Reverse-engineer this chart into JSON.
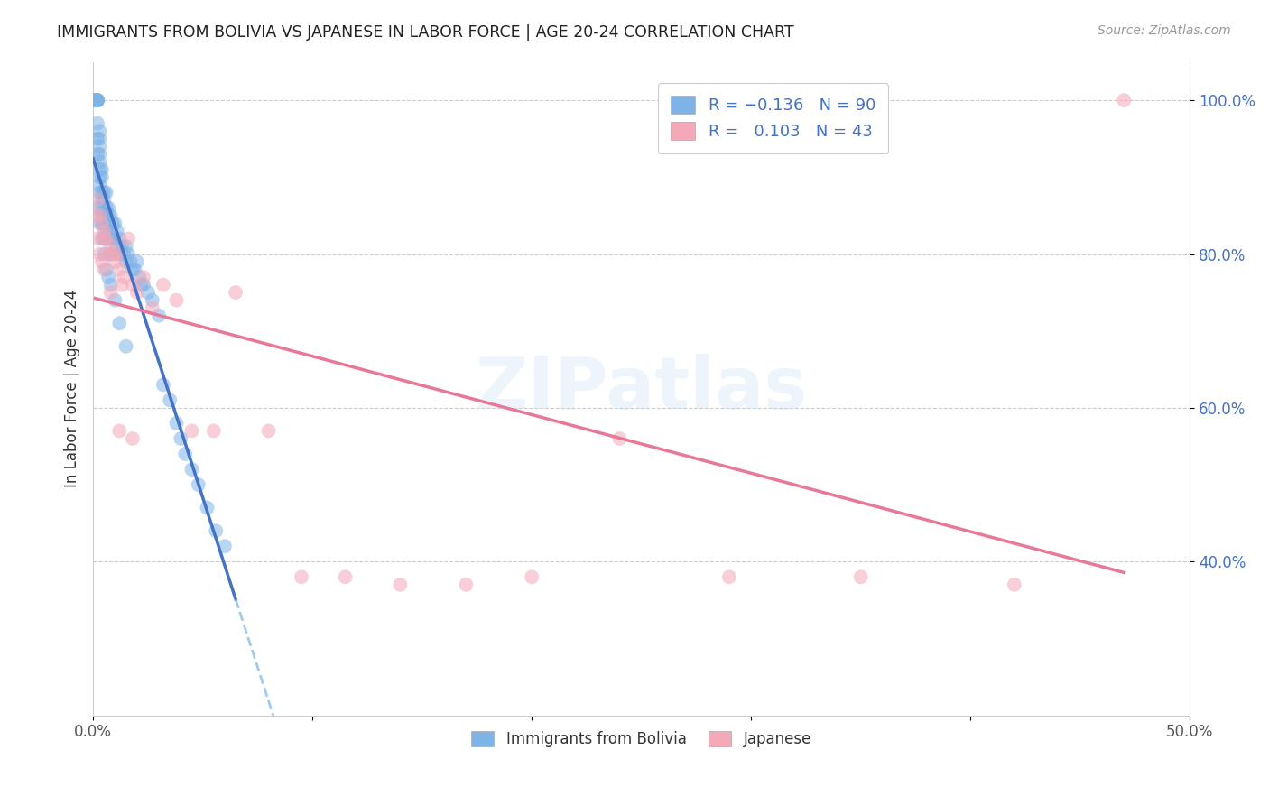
{
  "title": "IMMIGRANTS FROM BOLIVIA VS JAPANESE IN LABOR FORCE | AGE 20-24 CORRELATION CHART",
  "source": "Source: ZipAtlas.com",
  "ylabel": "In Labor Force | Age 20-24",
  "x_min": 0.0,
  "x_max": 0.5,
  "y_min": 0.2,
  "y_max": 1.05,
  "x_ticks": [
    0.0,
    0.1,
    0.2,
    0.3,
    0.4,
    0.5
  ],
  "x_tick_labels": [
    "0.0%",
    "",
    "",
    "",
    "",
    "50.0%"
  ],
  "y_ticks": [
    0.4,
    0.6,
    0.8,
    1.0
  ],
  "y_tick_labels": [
    "40.0%",
    "60.0%",
    "80.0%",
    "100.0%"
  ],
  "color_bolivia": "#7EB3E8",
  "color_japan": "#F4A8B8",
  "color_line_bolivia": "#4472C4",
  "color_line_japan": "#E87898",
  "color_dashed": "#7EB3E8",
  "bolivia_x": [
    0.001,
    0.001,
    0.001,
    0.001,
    0.002,
    0.002,
    0.002,
    0.002,
    0.002,
    0.002,
    0.002,
    0.002,
    0.003,
    0.003,
    0.003,
    0.003,
    0.003,
    0.003,
    0.003,
    0.003,
    0.003,
    0.004,
    0.004,
    0.004,
    0.004,
    0.004,
    0.004,
    0.004,
    0.005,
    0.005,
    0.005,
    0.005,
    0.005,
    0.005,
    0.006,
    0.006,
    0.006,
    0.006,
    0.006,
    0.007,
    0.007,
    0.007,
    0.007,
    0.008,
    0.008,
    0.008,
    0.008,
    0.009,
    0.009,
    0.01,
    0.01,
    0.011,
    0.011,
    0.012,
    0.012,
    0.013,
    0.014,
    0.015,
    0.015,
    0.016,
    0.017,
    0.018,
    0.019,
    0.02,
    0.021,
    0.022,
    0.023,
    0.025,
    0.027,
    0.03,
    0.032,
    0.035,
    0.038,
    0.04,
    0.042,
    0.045,
    0.048,
    0.052,
    0.056,
    0.06,
    0.002,
    0.003,
    0.004,
    0.005,
    0.006,
    0.007,
    0.008,
    0.01,
    0.012,
    0.015
  ],
  "bolivia_y": [
    1.0,
    1.0,
    1.0,
    1.0,
    1.0,
    1.0,
    1.0,
    1.0,
    1.0,
    0.97,
    0.95,
    0.93,
    0.96,
    0.95,
    0.94,
    0.93,
    0.92,
    0.91,
    0.9,
    0.89,
    0.88,
    0.91,
    0.9,
    0.88,
    0.87,
    0.86,
    0.85,
    0.84,
    0.88,
    0.87,
    0.86,
    0.85,
    0.84,
    0.82,
    0.88,
    0.86,
    0.85,
    0.83,
    0.82,
    0.86,
    0.85,
    0.84,
    0.82,
    0.85,
    0.83,
    0.82,
    0.8,
    0.84,
    0.82,
    0.84,
    0.82,
    0.83,
    0.81,
    0.82,
    0.8,
    0.81,
    0.8,
    0.81,
    0.79,
    0.8,
    0.79,
    0.78,
    0.78,
    0.79,
    0.77,
    0.76,
    0.76,
    0.75,
    0.74,
    0.72,
    0.63,
    0.61,
    0.58,
    0.56,
    0.54,
    0.52,
    0.5,
    0.47,
    0.44,
    0.42,
    0.86,
    0.84,
    0.82,
    0.8,
    0.78,
    0.77,
    0.76,
    0.74,
    0.71,
    0.68
  ],
  "japan_x": [
    0.001,
    0.002,
    0.002,
    0.003,
    0.003,
    0.004,
    0.004,
    0.005,
    0.005,
    0.006,
    0.007,
    0.008,
    0.009,
    0.01,
    0.011,
    0.012,
    0.013,
    0.014,
    0.016,
    0.018,
    0.02,
    0.023,
    0.027,
    0.032,
    0.038,
    0.045,
    0.055,
    0.065,
    0.08,
    0.095,
    0.115,
    0.14,
    0.17,
    0.2,
    0.24,
    0.29,
    0.35,
    0.42,
    0.47,
    0.005,
    0.008,
    0.012,
    0.018
  ],
  "japan_y": [
    0.85,
    0.87,
    0.82,
    0.85,
    0.8,
    0.84,
    0.79,
    0.83,
    0.78,
    0.82,
    0.8,
    0.81,
    0.8,
    0.79,
    0.8,
    0.78,
    0.76,
    0.77,
    0.82,
    0.76,
    0.75,
    0.77,
    0.73,
    0.76,
    0.74,
    0.57,
    0.57,
    0.75,
    0.57,
    0.38,
    0.38,
    0.37,
    0.37,
    0.38,
    0.56,
    0.38,
    0.38,
    0.37,
    1.0,
    0.82,
    0.75,
    0.57,
    0.56
  ]
}
